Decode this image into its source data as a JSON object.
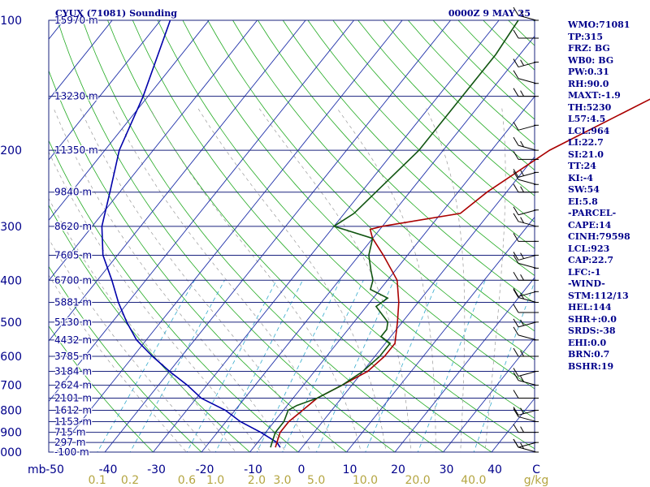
{
  "header": {
    "station": "CYUX (71081) Sounding",
    "time": "0000Z  9 MAY 25"
  },
  "chart_data": {
    "type": "skew-t",
    "pressure_axis_label": "mb",
    "pressure_ticks": [
      100,
      200,
      300,
      400,
      500,
      600,
      700,
      800,
      900,
      1000
    ],
    "temperature_ticks": [
      -50,
      -40,
      -30,
      -20,
      -10,
      0,
      10,
      20,
      30,
      40
    ],
    "mixing_ratio_ticks": [
      "0.1",
      "0.2",
      "0.6",
      "1.0",
      "2.0",
      "3.0",
      "5.0",
      "10.0",
      "20.0",
      "40.0"
    ],
    "temperature_unit": "C",
    "mixing_ratio_unit": "g/kg",
    "height_labels": [
      {
        "p": 100,
        "text": "15970 m"
      },
      {
        "p": 150,
        "text": "13230 m"
      },
      {
        "p": 200,
        "text": "11350 m"
      },
      {
        "p": 250,
        "text": "9840 m"
      },
      {
        "p": 300,
        "text": "8620 m"
      },
      {
        "p": 350,
        "text": "7605 m"
      },
      {
        "p": 400,
        "text": "6700 m"
      },
      {
        "p": 450,
        "text": "5881 m"
      },
      {
        "p": 500,
        "text": "5130 m"
      },
      {
        "p": 550,
        "text": "4432 m"
      },
      {
        "p": 600,
        "text": "3785 m"
      },
      {
        "p": 650,
        "text": "3184 m"
      },
      {
        "p": 700,
        "text": "2624 m"
      },
      {
        "p": 750,
        "text": "2101 m"
      },
      {
        "p": 800,
        "text": "1612 m"
      },
      {
        "p": 850,
        "text": "1153 m"
      },
      {
        "p": 900,
        "text": "715 m"
      },
      {
        "p": 950,
        "text": "297 m"
      },
      {
        "p": 1000,
        "text": "-100 m"
      }
    ],
    "temperature_profile": [
      [
        975,
        -5.5
      ],
      [
        950,
        -6
      ],
      [
        900,
        -7
      ],
      [
        850,
        -7
      ],
      [
        800,
        -6
      ],
      [
        750,
        -5
      ],
      [
        700,
        -2
      ],
      [
        650,
        1
      ],
      [
        600,
        2
      ],
      [
        560,
        2
      ],
      [
        500,
        -1
      ],
      [
        450,
        -4
      ],
      [
        400,
        -8
      ],
      [
        350,
        -15
      ],
      [
        320,
        -20
      ],
      [
        305,
        -22
      ],
      [
        300,
        -20
      ],
      [
        280,
        -6
      ],
      [
        250,
        -4
      ],
      [
        200,
        2
      ],
      [
        150,
        15
      ],
      [
        120,
        27
      ],
      [
        100,
        36
      ]
    ],
    "dewpoint_profile": [
      [
        975,
        -6.5
      ],
      [
        950,
        -7
      ],
      [
        900,
        -8
      ],
      [
        850,
        -8
      ],
      [
        800,
        -9
      ],
      [
        780,
        -8
      ],
      [
        750,
        -5
      ],
      [
        700,
        -2
      ],
      [
        650,
        0
      ],
      [
        600,
        1
      ],
      [
        560,
        1
      ],
      [
        540,
        -2
      ],
      [
        520,
        -2
      ],
      [
        500,
        -3
      ],
      [
        460,
        -8
      ],
      [
        440,
        -7
      ],
      [
        420,
        -12
      ],
      [
        400,
        -13
      ],
      [
        380,
        -15
      ],
      [
        350,
        -18
      ],
      [
        320,
        -20
      ],
      [
        300,
        -30
      ],
      [
        280,
        -28
      ],
      [
        250,
        -27
      ],
      [
        200,
        -25
      ],
      [
        150,
        -25
      ],
      [
        120,
        -25
      ],
      [
        100,
        -26
      ]
    ],
    "parcel_profile": [
      [
        975,
        -4.5
      ],
      [
        950,
        -6
      ],
      [
        900,
        -11
      ],
      [
        850,
        -17
      ],
      [
        800,
        -22
      ],
      [
        750,
        -29
      ],
      [
        700,
        -34
      ],
      [
        650,
        -40
      ],
      [
        600,
        -46
      ],
      [
        550,
        -52
      ],
      [
        500,
        -57
      ],
      [
        450,
        -62
      ],
      [
        400,
        -67
      ],
      [
        350,
        -73
      ],
      [
        300,
        -78
      ],
      [
        250,
        -82
      ],
      [
        200,
        -87
      ],
      [
        150,
        -91
      ],
      [
        100,
        -98
      ]
    ],
    "wind_pressures": [
      100,
      110,
      125,
      140,
      150,
      175,
      200,
      210,
      225,
      240,
      250,
      275,
      300,
      325,
      350,
      375,
      400,
      425,
      450,
      475,
      500,
      550,
      600,
      650,
      700,
      750,
      800,
      850,
      900,
      950,
      1000
    ]
  },
  "indices": [
    "WMO:71081",
    "TP:315",
    "FRZ: BG",
    "WB0: BG",
    "PW:0.31",
    "RH:90.0",
    "MAXT:-1.9",
    "TH:5230",
    "L57:4.5",
    "LCL:964",
    "LI:22.7",
    "SI:21.0",
    "TT:24",
    "KI:-4",
    "SW:54",
    "EI:5.8",
    "-PARCEL-",
    "CAPE:14",
    "CINH:79598",
    "LCL:923",
    "CAP:22.7",
    "LFC:-1",
    "-WIND-",
    "STM:112/13",
    "HEL:144",
    "SHR+:0.0",
    "SRDS:-38",
    "EHI:0.0",
    "BRN:0.7",
    "BSHR:19"
  ],
  "colors": {
    "isobar": "#1a237e",
    "isotherm": "#2233aa",
    "dry_adiabat": "#22aa22",
    "moist_adiabat": "#999999",
    "mixing_ratio": "#33aacc",
    "temperature": "#aa0000",
    "dewpoint": "#115511",
    "parcel": "#0000aa",
    "text": "#00008b",
    "mixing_label": "#b5a642"
  }
}
